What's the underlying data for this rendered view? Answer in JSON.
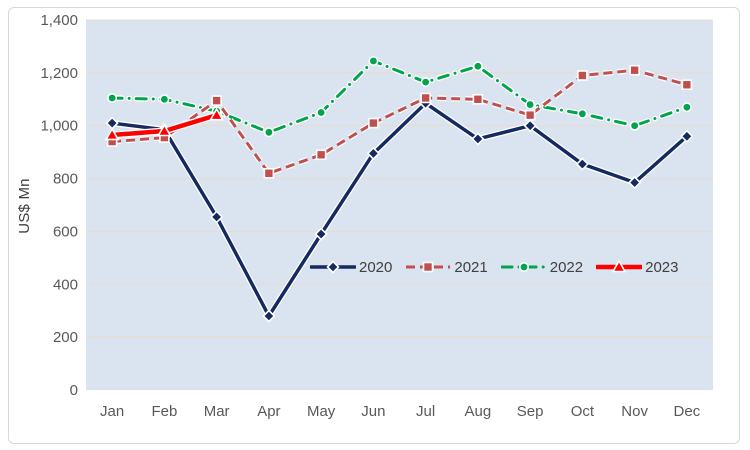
{
  "chart_data": {
    "type": "line",
    "title": "",
    "ylabel": "US$ Mn",
    "xlabel": "",
    "grid": true,
    "legend_position": "inside-center",
    "categories": [
      "Jan",
      "Feb",
      "Mar",
      "Apr",
      "May",
      "Jun",
      "Jul",
      "Aug",
      "Sep",
      "Oct",
      "Nov",
      "Dec"
    ],
    "y_axis": {
      "min": 0,
      "max": 1400,
      "step": 200,
      "tick_labels": [
        "0",
        "200",
        "400",
        "600",
        "800",
        "1,000",
        "1,200",
        "1,400"
      ]
    },
    "series": [
      {
        "name": "2020",
        "color": "#152a60",
        "line_style": "solid",
        "marker": "diamond",
        "values": [
          1010,
          985,
          655,
          280,
          590,
          895,
          1085,
          950,
          1000,
          855,
          785,
          960
        ]
      },
      {
        "name": "2021",
        "color": "#c0504d",
        "line_style": "dashed",
        "marker": "square",
        "values": [
          940,
          955,
          1095,
          820,
          890,
          1010,
          1105,
          1100,
          1040,
          1190,
          1210,
          1155
        ]
      },
      {
        "name": "2022",
        "color": "#00a54b",
        "line_style": "dash-dot",
        "marker": "circle",
        "values": [
          1105,
          1100,
          1055,
          975,
          1050,
          1245,
          1165,
          1225,
          1080,
          1045,
          1000,
          1070
        ]
      },
      {
        "name": "2023",
        "color": "#fe0000",
        "line_style": "solid-thick",
        "marker": "triangle",
        "values": [
          965,
          980,
          1040,
          null,
          null,
          null,
          null,
          null,
          null,
          null,
          null,
          null
        ]
      }
    ],
    "colors": {
      "plot_background": "#dae3f0",
      "gridline": "#e9dcc9",
      "axis_text": "#595959",
      "label_text": "#404040",
      "frame_border": "#d8d8d8",
      "halo": "#ffffff"
    }
  }
}
